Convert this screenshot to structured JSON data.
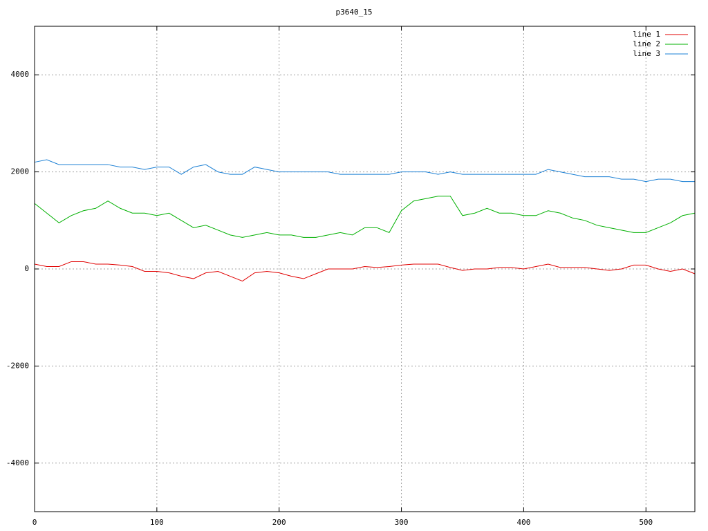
{
  "chart_data": {
    "type": "line",
    "title": "p3640_15",
    "x": [
      0,
      10,
      20,
      30,
      40,
      50,
      60,
      70,
      80,
      90,
      100,
      110,
      120,
      130,
      140,
      150,
      160,
      170,
      180,
      190,
      200,
      210,
      220,
      230,
      240,
      250,
      260,
      270,
      280,
      290,
      300,
      310,
      320,
      330,
      340,
      350,
      360,
      370,
      380,
      390,
      400,
      410,
      420,
      430,
      440,
      450,
      460,
      470,
      480,
      490,
      500,
      510,
      520,
      530,
      540
    ],
    "series": [
      {
        "name": "line 1",
        "color": "#e00000",
        "values": [
          100,
          50,
          50,
          150,
          150,
          100,
          100,
          80,
          50,
          -50,
          -50,
          -80,
          -150,
          -200,
          -80,
          -50,
          -150,
          -250,
          -80,
          -50,
          -80,
          -150,
          -200,
          -100,
          0,
          0,
          0,
          50,
          30,
          50,
          80,
          100,
          100,
          100,
          30,
          -30,
          0,
          0,
          30,
          30,
          0,
          50,
          100,
          30,
          30,
          30,
          0,
          -30,
          0,
          80,
          80,
          0,
          -50,
          0,
          -100
        ]
      },
      {
        "name": "line 2",
        "color": "#00b000",
        "values": [
          1350,
          1150,
          950,
          1100,
          1200,
          1250,
          1400,
          1250,
          1150,
          1150,
          1100,
          1150,
          1000,
          850,
          900,
          800,
          700,
          650,
          700,
          750,
          700,
          700,
          650,
          650,
          700,
          750,
          700,
          850,
          850,
          750,
          1200,
          1400,
          1450,
          1500,
          1500,
          1100,
          1150,
          1250,
          1150,
          1150,
          1100,
          1100,
          1200,
          1150,
          1050,
          1000,
          900,
          850,
          800,
          750,
          750,
          850,
          950,
          1100,
          1150
        ]
      },
      {
        "name": "line 3",
        "color": "#1a7fd4",
        "values": [
          2200,
          2250,
          2150,
          2150,
          2150,
          2150,
          2150,
          2100,
          2100,
          2050,
          2100,
          2100,
          1950,
          2100,
          2150,
          2000,
          1950,
          1950,
          2100,
          2050,
          2000,
          2000,
          2000,
          2000,
          2000,
          1950,
          1950,
          1950,
          1950,
          1950,
          2000,
          2000,
          2000,
          1950,
          2000,
          1950,
          1950,
          1950,
          1950,
          1950,
          1950,
          1950,
          2050,
          2000,
          1950,
          1900,
          1900,
          1900,
          1850,
          1850,
          1800,
          1850,
          1850,
          1800,
          1800
        ]
      }
    ],
    "xlim": [
      0,
      540
    ],
    "ylim": [
      -5000,
      5000
    ],
    "xticks": [
      0,
      100,
      200,
      300,
      400,
      500
    ],
    "yticks": [
      -4000,
      -2000,
      0,
      2000,
      4000
    ],
    "grid": true,
    "legend": "top-right"
  }
}
